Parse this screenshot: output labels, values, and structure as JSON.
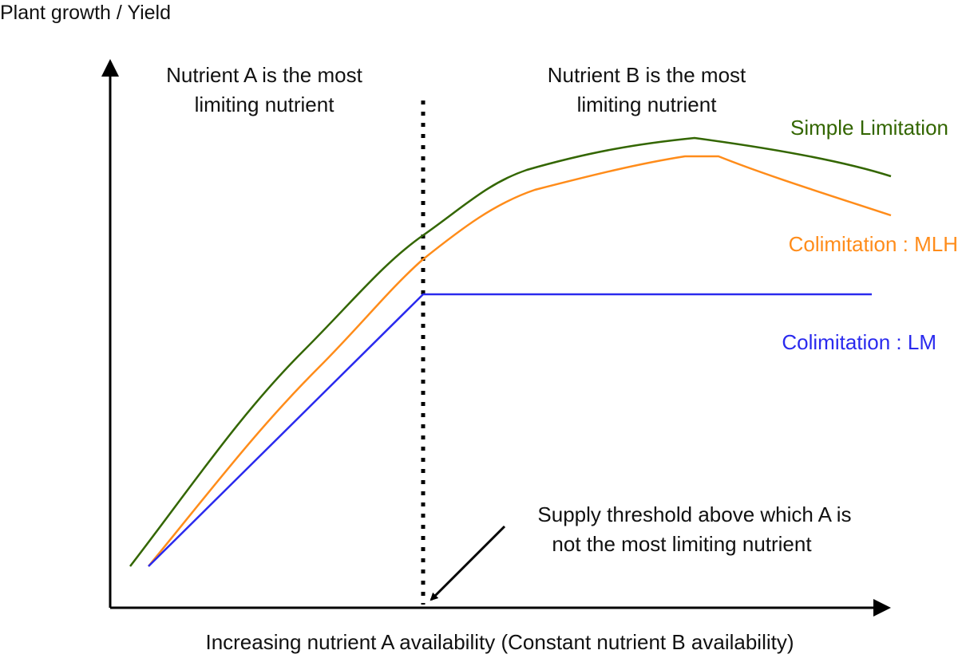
{
  "y_axis_label": "Plant growth / Yield",
  "x_axis_label": "Increasing nutrient A availability (Constant nutrient B availability)",
  "region_left": {
    "line1": "Nutrient A is the most",
    "line2": "limiting nutrient"
  },
  "region_right": {
    "line1": "Nutrient B is the most",
    "line2": "limiting nutrient"
  },
  "threshold_annotation": {
    "line1": "Supply threshold above which A is",
    "line2": "not the most limiting nutrient"
  },
  "series": [
    {
      "name": "Simple Limitation",
      "color": "#336600"
    },
    {
      "name": "Colimitation : MLH",
      "color": "#ff8c1a"
    },
    {
      "name": "Colimitation : LM",
      "color": "#2a2aee"
    }
  ]
}
